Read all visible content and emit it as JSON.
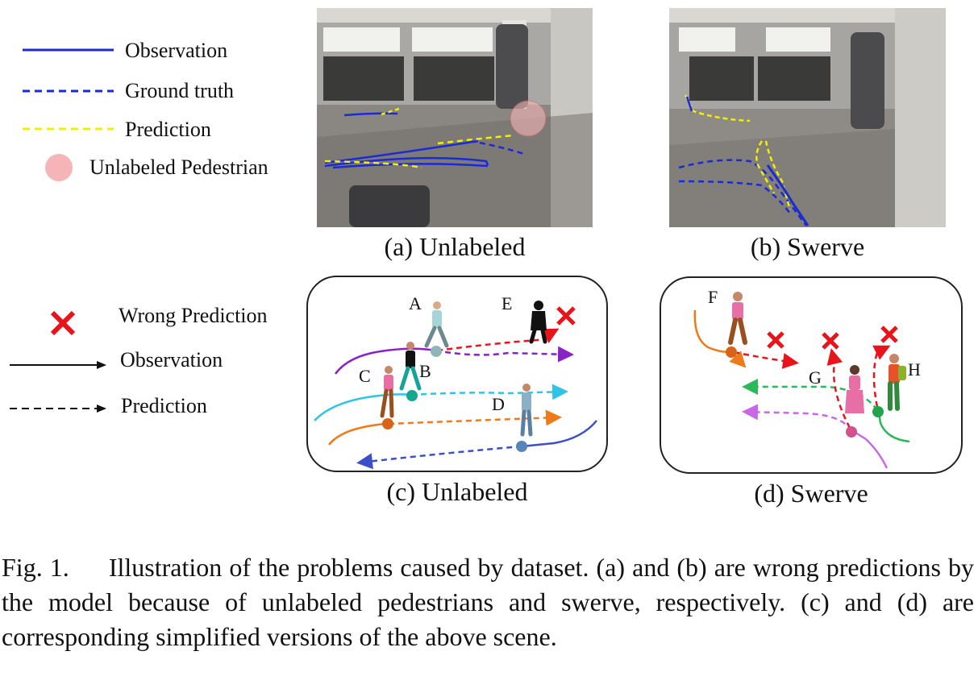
{
  "legend_top": {
    "observation": "Observation",
    "ground_truth": "Ground truth",
    "prediction": "Prediction",
    "unlabeled": "Unlabeled Pedestrian"
  },
  "legend_bottom": {
    "wrong": "Wrong Prediction",
    "observation": "Observation",
    "prediction": "Prediction"
  },
  "panels": {
    "a": "(a) Unlabeled",
    "b": "(b) Swerve",
    "c": "(c) Unlabeled",
    "d": "(d) Swerve"
  },
  "labels_c": {
    "A": "A",
    "B": "B",
    "C": "C",
    "D": "D",
    "E": "E"
  },
  "labels_d": {
    "F": "F",
    "G": "G",
    "H": "H"
  },
  "caption": {
    "fig": "Fig. 1.",
    "text": "Illustration of the problems caused by dataset. (a) and (b) are wrong predictions by the model because of unlabeled pedestrians and swerve, respectively. (c) and (d) are corresponding simplified versions of the above scene."
  },
  "colors": {
    "observation": "#1a2bd6",
    "ground_truth": "#1a2bd6",
    "prediction": "#f0f000",
    "unlabeled": "#f5b5b8",
    "wrong": "#e8141c"
  }
}
